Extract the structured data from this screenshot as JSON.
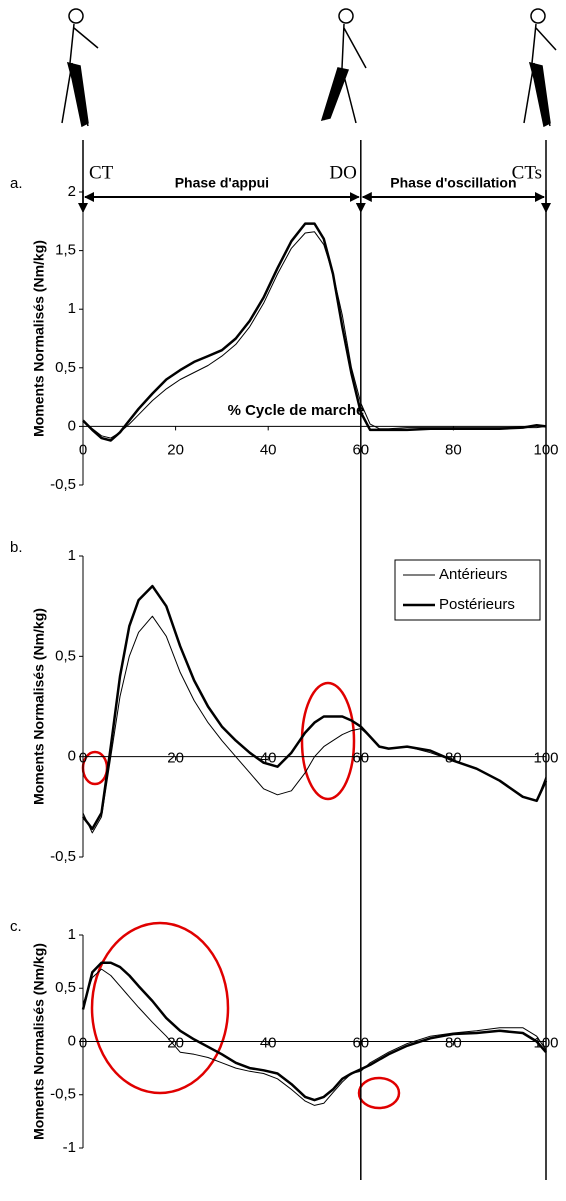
{
  "gait_events": [
    {
      "label": "CT",
      "x": 0
    },
    {
      "label": "DO",
      "x": 60
    },
    {
      "label": "CTs",
      "x": 100
    }
  ],
  "phases": [
    {
      "label": "Phase d'appui",
      "start": 0,
      "end": 60
    },
    {
      "label": "Phase d'oscillation",
      "start": 60,
      "end": 100
    }
  ],
  "chart_data": [
    {
      "type": "line",
      "panel": "a.",
      "ylabel": "Moments Normalisés (Nm/kg)",
      "annotation": {
        "text": "% Cycle de marche",
        "x": 46,
        "y": 0.13
      },
      "x": [
        0,
        2,
        4,
        6,
        8,
        10,
        12,
        15,
        18,
        21,
        24,
        27,
        30,
        33,
        36,
        39,
        42,
        45,
        48,
        50,
        52,
        54,
        56,
        58,
        60,
        62,
        64,
        66,
        70,
        75,
        80,
        85,
        90,
        95,
        98,
        100
      ],
      "xlim": [
        0,
        100
      ],
      "xticks": [
        0,
        20,
        40,
        60,
        80,
        100
      ],
      "ylim": [
        -0.5,
        2
      ],
      "yticks": [
        {
          "value": -0.5,
          "label": "-0,5"
        },
        0,
        {
          "value": 0.5,
          "label": "0,5"
        },
        1,
        {
          "value": 1.5,
          "label": "1,5"
        },
        2
      ],
      "series": [
        {
          "color": "#000000",
          "line_width": 1,
          "values": [
            0.05,
            -0.02,
            -0.08,
            -0.1,
            -0.05,
            0.02,
            0.1,
            0.22,
            0.32,
            0.4,
            0.46,
            0.52,
            0.6,
            0.7,
            0.85,
            1.05,
            1.3,
            1.52,
            1.65,
            1.66,
            1.55,
            1.3,
            0.95,
            0.5,
            0.2,
            0.02,
            -0.02,
            -0.02,
            -0.01,
            -0.01,
            -0.01,
            -0.01,
            -0.01,
            -0.01,
            -0.01,
            0
          ]
        },
        {
          "color": "#000000",
          "line_width": 2.5,
          "values": [
            0.05,
            -0.03,
            -0.1,
            -0.12,
            -0.05,
            0.05,
            0.15,
            0.28,
            0.4,
            0.48,
            0.55,
            0.6,
            0.65,
            0.75,
            0.9,
            1.1,
            1.35,
            1.58,
            1.73,
            1.73,
            1.6,
            1.3,
            0.85,
            0.45,
            0.12,
            -0.03,
            -0.03,
            -0.03,
            -0.03,
            -0.02,
            -0.02,
            -0.02,
            -0.02,
            -0.01,
            0.01,
            0
          ]
        }
      ]
    },
    {
      "type": "line",
      "panel": "b.",
      "ylabel": "Moments Normalisés  (Nm/kg)",
      "legend": "upper right",
      "x": [
        0,
        2,
        4,
        6,
        8,
        10,
        12,
        15,
        18,
        21,
        24,
        27,
        30,
        33,
        36,
        39,
        42,
        45,
        48,
        50,
        52,
        54,
        56,
        58,
        60,
        62,
        64,
        66,
        70,
        75,
        80,
        85,
        90,
        95,
        98,
        100
      ],
      "xlim": [
        0,
        100
      ],
      "xticks": [
        0,
        20,
        40,
        60,
        80,
        100
      ],
      "ylim": [
        -0.5,
        1
      ],
      "yticks": [
        {
          "value": -0.5,
          "label": "-0,5"
        },
        0,
        {
          "value": 0.5,
          "label": "0,5"
        },
        1
      ],
      "series": [
        {
          "name": "Antérieurs",
          "color": "#000000",
          "line_width": 1,
          "values": [
            -0.28,
            -0.38,
            -0.3,
            0.0,
            0.3,
            0.5,
            0.62,
            0.7,
            0.6,
            0.42,
            0.28,
            0.17,
            0.08,
            0.0,
            -0.08,
            -0.16,
            -0.19,
            -0.17,
            -0.08,
            0.0,
            0.05,
            0.08,
            0.11,
            0.13,
            0.14,
            0.1,
            0.05,
            0.04,
            0.05,
            0.02,
            -0.02,
            -0.06,
            -0.12,
            -0.2,
            -0.22,
            -0.1
          ]
        },
        {
          "name": "Postérieurs",
          "color": "#000000",
          "line_width": 2.5,
          "values": [
            -0.3,
            -0.36,
            -0.28,
            0.05,
            0.4,
            0.65,
            0.78,
            0.85,
            0.75,
            0.55,
            0.38,
            0.25,
            0.15,
            0.08,
            0.02,
            -0.03,
            -0.05,
            0.02,
            0.12,
            0.17,
            0.2,
            0.2,
            0.2,
            0.18,
            0.15,
            0.1,
            0.05,
            0.04,
            0.05,
            0.03,
            -0.02,
            -0.06,
            -0.12,
            -0.2,
            -0.22,
            -0.12
          ]
        }
      ]
    },
    {
      "type": "line",
      "panel": "c.",
      "ylabel": "Moments Normalisés  (Nm/kg)",
      "x": [
        0,
        2,
        4,
        6,
        8,
        10,
        12,
        15,
        18,
        21,
        24,
        27,
        30,
        33,
        36,
        39,
        42,
        45,
        48,
        50,
        52,
        54,
        56,
        58,
        60,
        62,
        64,
        66,
        70,
        75,
        80,
        85,
        90,
        95,
        98,
        100
      ],
      "xlim": [
        0,
        100
      ],
      "xticks": [
        0,
        20,
        40,
        60,
        80,
        100
      ],
      "ylim": [
        -1,
        1
      ],
      "yticks": [
        -1,
        {
          "value": -0.5,
          "label": "-0,5"
        },
        0,
        {
          "value": 0.5,
          "label": "0,5"
        },
        1
      ],
      "series": [
        {
          "color": "#000000",
          "line_width": 1,
          "values": [
            0.35,
            0.6,
            0.68,
            0.62,
            0.52,
            0.42,
            0.32,
            0.18,
            0.05,
            -0.1,
            -0.12,
            -0.15,
            -0.2,
            -0.25,
            -0.28,
            -0.3,
            -0.35,
            -0.45,
            -0.56,
            -0.6,
            -0.58,
            -0.48,
            -0.38,
            -0.3,
            -0.28,
            -0.2,
            -0.15,
            -0.1,
            -0.02,
            0.05,
            0.08,
            0.1,
            0.13,
            0.13,
            0.05,
            -0.08
          ]
        },
        {
          "color": "#000000",
          "line_width": 2.5,
          "values": [
            0.3,
            0.65,
            0.74,
            0.74,
            0.7,
            0.62,
            0.52,
            0.38,
            0.22,
            0.1,
            0.02,
            -0.05,
            -0.12,
            -0.2,
            -0.25,
            -0.27,
            -0.3,
            -0.4,
            -0.52,
            -0.55,
            -0.52,
            -0.45,
            -0.35,
            -0.3,
            -0.26,
            -0.22,
            -0.17,
            -0.12,
            -0.04,
            0.03,
            0.07,
            0.08,
            0.1,
            0.08,
            0.0,
            -0.1
          ]
        }
      ]
    }
  ]
}
